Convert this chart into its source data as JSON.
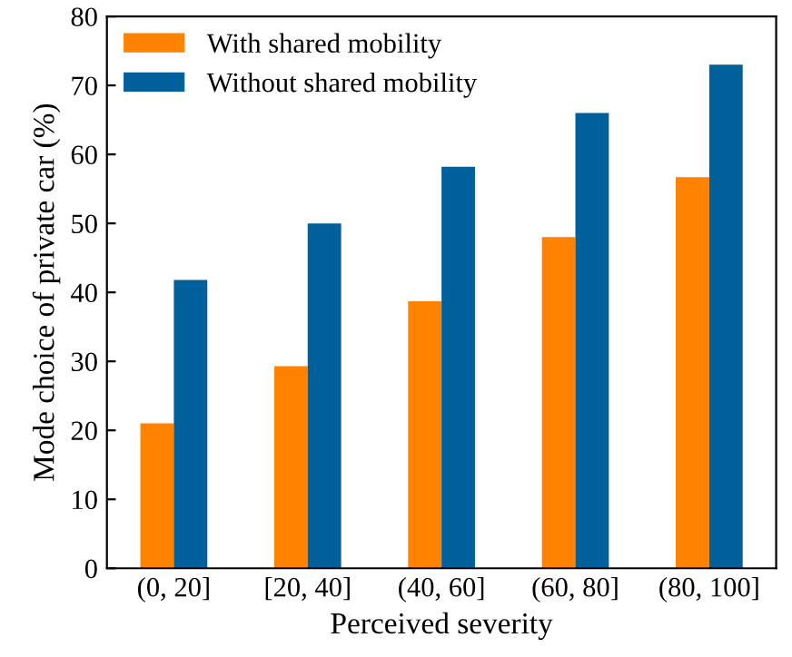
{
  "chart_data": {
    "type": "bar",
    "xlabel": "Perceived severity",
    "ylabel": "Mode choice of private car (%)",
    "categories": [
      "(0, 20]",
      "[20, 40]",
      "(40, 60]",
      "(60, 80]",
      "(80, 100]"
    ],
    "series": [
      {
        "name": "With shared mobility",
        "color": "#ff8200",
        "values": [
          21,
          29.3,
          38.7,
          48,
          56.7
        ]
      },
      {
        "name": "Without shared mobility",
        "color": "#00609c",
        "values": [
          41.8,
          50,
          58.2,
          66,
          73
        ]
      }
    ],
    "ylim": [
      0,
      80
    ],
    "yticks": [
      0,
      10,
      20,
      30,
      40,
      50,
      60,
      70,
      80
    ],
    "grid": false,
    "legend": "top left"
  }
}
